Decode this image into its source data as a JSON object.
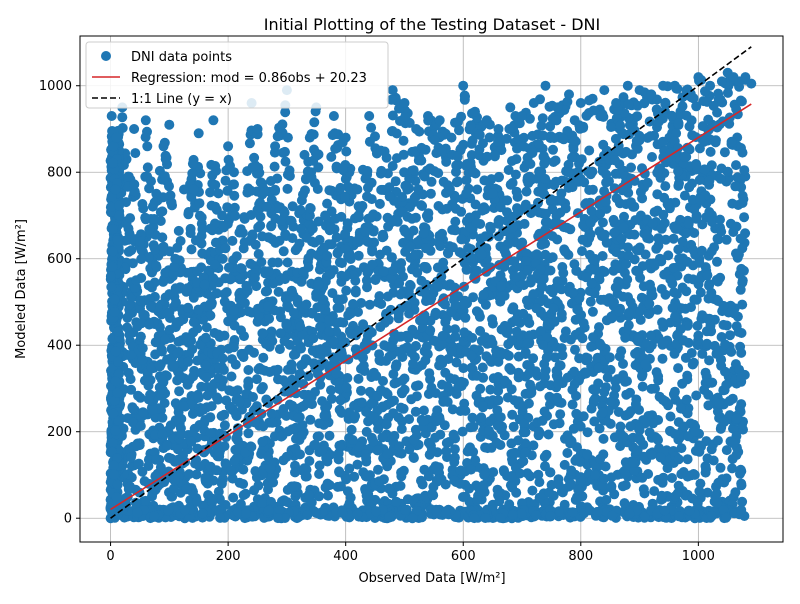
{
  "chart_data": {
    "type": "scatter",
    "title": "Initial Plotting of the Testing Dataset - DNI",
    "xlabel": "Observed Data [W/m²]",
    "ylabel": "Modeled Data [W/m²]",
    "xlim": [
      -52,
      1144
    ],
    "ylim": [
      -55,
      1115
    ],
    "x_ticks": [
      "0",
      "200",
      "400",
      "600",
      "800",
      "1000"
    ],
    "y_ticks": [
      "0",
      "200",
      "400",
      "600",
      "800",
      "1000"
    ],
    "x_tick_values": [
      0,
      200,
      400,
      600,
      800,
      1000
    ],
    "y_tick_values": [
      0,
      200,
      400,
      600,
      800,
      1000
    ],
    "grid": true,
    "legend_position": "top-left",
    "colors": {
      "points": "#1f77b4",
      "regression": "#d62728",
      "identity": "#000000"
    },
    "series": [
      {
        "name": "DNI data points",
        "kind": "scatter",
        "x": [
          0,
          2,
          5,
          8,
          10,
          15,
          20,
          30,
          40,
          50,
          60,
          75,
          90,
          100,
          110,
          125,
          140,
          150,
          160,
          175,
          190,
          200,
          210,
          225,
          240,
          250,
          265,
          280,
          300,
          315,
          330,
          350,
          365,
          380,
          400,
          420,
          440,
          460,
          480,
          500,
          520,
          540,
          560,
          580,
          600,
          620,
          640,
          660,
          680,
          700,
          720,
          740,
          760,
          780,
          800,
          820,
          840,
          860,
          880,
          900,
          920,
          940,
          960,
          980,
          1000,
          1020,
          1040,
          1050,
          1060,
          1070,
          1080,
          1090
        ],
        "y": [
          0,
          930,
          860,
          760,
          880,
          700,
          950,
          790,
          900,
          640,
          920,
          730,
          860,
          910,
          600,
          760,
          820,
          890,
          540,
          920,
          700,
          860,
          800,
          660,
          960,
          900,
          720,
          860,
          990,
          620,
          840,
          950,
          700,
          930,
          880,
          760,
          930,
          850,
          990,
          960,
          900,
          930,
          920,
          880,
          1000,
          940,
          920,
          900,
          950,
          930,
          960,
          1000,
          950,
          980,
          960,
          970,
          990,
          960,
          1000,
          990,
          980,
          1000,
          1000,
          990,
          1020,
          1000,
          1010,
          1030,
          1020,
          1010,
          1020,
          1005
        ]
      },
      {
        "name": "Regression: mod = 0.86obs + 20.23",
        "kind": "line",
        "x": [
          0,
          1090
        ],
        "y": [
          20.23,
          957.63
        ]
      },
      {
        "name": "1:1 Line (y = x)",
        "kind": "line",
        "style": "dashed",
        "x": [
          0,
          1090
        ],
        "y": [
          0,
          1090
        ]
      }
    ]
  }
}
